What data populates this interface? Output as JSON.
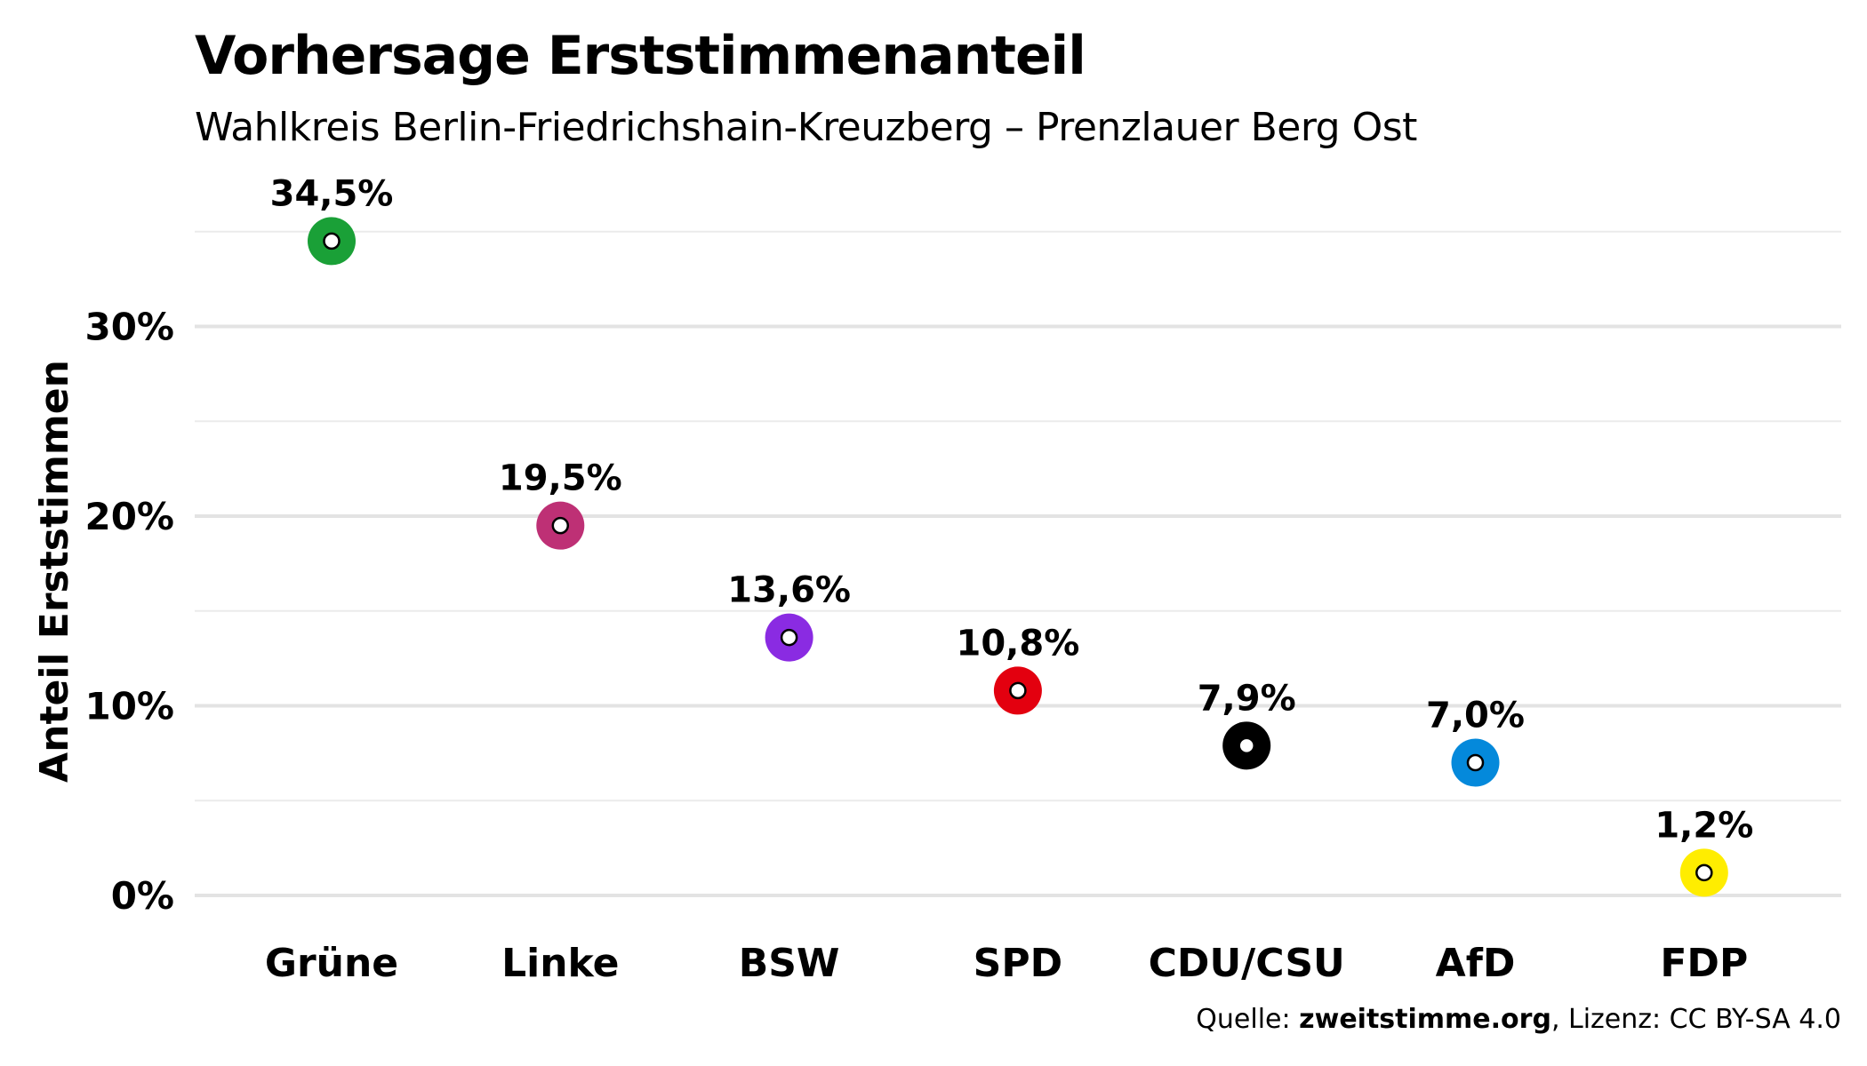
{
  "chart_data": {
    "type": "scatter",
    "title": "Vorhersage Erststimmenanteil",
    "subtitle": "Wahlkreis Berlin-Friedrichshain-Kreuzberg – Prenzlauer Berg Ost",
    "xlabel": "",
    "ylabel": "Anteil Erststimmen",
    "categories": [
      "Grüne",
      "Linke",
      "BSW",
      "SPD",
      "CDU/CSU",
      "AfD",
      "FDP"
    ],
    "values": [
      34.5,
      19.5,
      13.6,
      10.8,
      7.9,
      7.0,
      1.2
    ],
    "value_labels": [
      "34,5%",
      "19,5%",
      "13,6%",
      "10,8%",
      "7,9%",
      "7,0%",
      "1,2%"
    ],
    "colors": [
      "#1aa037",
      "#be3075",
      "#8a2be2",
      "#e3000f",
      "#000000",
      "#0489db",
      "#ffed00"
    ],
    "ylim": [
      0,
      37
    ],
    "yticks": [
      0,
      10,
      20,
      30
    ],
    "ytick_labels": [
      "0%",
      "10%",
      "20%",
      "30%"
    ],
    "minor_gridlines": [
      5,
      15,
      25,
      35
    ],
    "grid": true,
    "legend": "none"
  },
  "caption": {
    "prefix": "Quelle: ",
    "source": "zweitstimme.org",
    "suffix": ", Lizenz: CC BY-SA 4.0"
  }
}
